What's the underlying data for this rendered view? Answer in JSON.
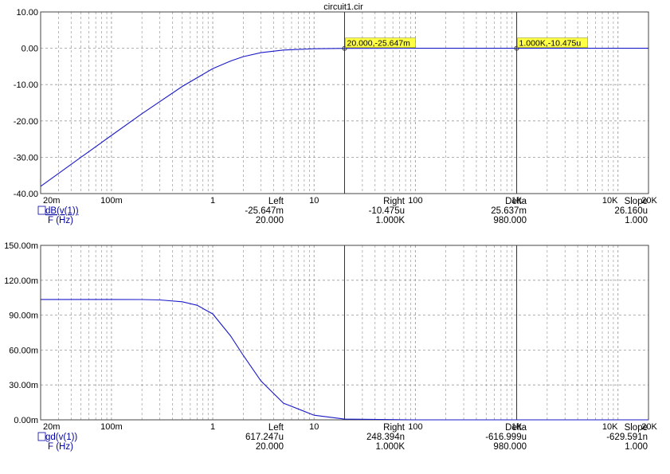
{
  "title": "circuit1.cir",
  "colors": {
    "trace": "#1a1ac8",
    "grid": "#9a9a9a",
    "frame": "#444444",
    "cursor": "#333333",
    "label_bg": "#ffff44",
    "text": "#000000",
    "readout_text": "#0000a0"
  },
  "x_ticks": [
    "20m",
    "100m",
    "1",
    "10",
    "100",
    "1K",
    "10K",
    "20K"
  ],
  "cursors": {
    "left_x": 20,
    "right_x": 1000
  },
  "readout_headers": {
    "left": "Left",
    "right": "Right",
    "delta": "Delta",
    "slope": "Slope"
  },
  "chart_data": [
    {
      "type": "line",
      "x_scale": "log",
      "xlim": [
        0.02,
        20000
      ],
      "ylim": [
        -40,
        10
      ],
      "yticks": [
        10,
        0,
        -10,
        -20,
        -30,
        -40
      ],
      "ytick_labels": [
        "10.00",
        "0.00",
        "-10.00",
        "-20.00",
        "-30.00",
        "-40.00"
      ],
      "series": [
        {
          "name": "dB(v(1))",
          "x": [
            0.02,
            0.05,
            0.1,
            0.2,
            0.5,
            1,
            1.5,
            2,
            3,
            5,
            10,
            20,
            100,
            1000,
            20000
          ],
          "y": [
            -38.0,
            -30.0,
            -24.0,
            -18.0,
            -10.5,
            -5.6,
            -3.5,
            -2.3,
            -1.2,
            -0.48,
            -0.13,
            -0.026,
            -0.001,
            -1e-05,
            0
          ]
        }
      ],
      "cursor_labels": [
        {
          "text": "20.000,-25.647m",
          "x": 20,
          "y": -0.025647
        },
        {
          "text": "1.000K,-10.475u",
          "x": 1000,
          "y": -1.0475e-05
        }
      ],
      "readout": {
        "row1": {
          "label": "dB(v(1))",
          "left": "-25.647m",
          "right": "-10.475u",
          "delta": "25.637m",
          "slope": "26.160u"
        },
        "row2": {
          "label": "F (Hz)",
          "left": "20.000",
          "right": "1.000K",
          "delta": "980.000",
          "slope": "1.000"
        }
      }
    },
    {
      "type": "line",
      "x_scale": "log",
      "xlim": [
        0.02,
        20000
      ],
      "ylim": [
        0,
        0.15
      ],
      "yticks": [
        0.15,
        0.12,
        0.09,
        0.06,
        0.03,
        0
      ],
      "ytick_labels": [
        "150.00m",
        "120.00m",
        "90.00m",
        "60.00m",
        "30.00m",
        "0.00m"
      ],
      "series": [
        {
          "name": "gd(v(1))",
          "x": [
            0.02,
            0.05,
            0.1,
            0.2,
            0.3,
            0.5,
            0.7,
            1,
            1.5,
            2,
            3,
            5,
            10,
            20,
            100,
            1000,
            20000
          ],
          "y": [
            0.1035,
            0.1035,
            0.1035,
            0.1034,
            0.1031,
            0.1015,
            0.0985,
            0.091,
            0.0722,
            0.0555,
            0.0333,
            0.0143,
            0.004,
            0.00062,
            2.5e-05,
            2.5e-07,
            0
          ]
        }
      ],
      "readout": {
        "row1": {
          "label": "gd(v(1))",
          "left": "617.247u",
          "right": "248.394n",
          "delta": "-616.999u",
          "slope": "-629.591n"
        },
        "row2": {
          "label": "F (Hz)",
          "left": "20.000",
          "right": "1.000K",
          "delta": "980.000",
          "slope": "1.000"
        }
      }
    }
  ]
}
